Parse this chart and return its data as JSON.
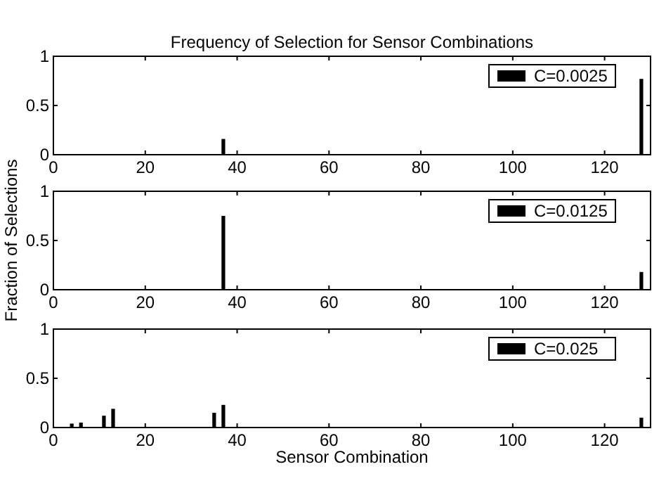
{
  "chart_data": [
    {
      "type": "bar",
      "title": "Frequency of Selection for Sensor Combinations",
      "x": [
        37,
        128
      ],
      "series": [
        {
          "name": "C=0.0025",
          "color": "#000000",
          "values": [
            0.16,
            0.77
          ]
        }
      ],
      "xlim": [
        0,
        130
      ],
      "xticks": [
        0,
        20,
        40,
        60,
        80,
        100,
        120
      ],
      "ylim": [
        0,
        1
      ],
      "yticks": [
        0,
        0.5,
        1
      ],
      "legend": "top right",
      "grid": false
    },
    {
      "type": "bar",
      "ylabel": "Fraction of Selections",
      "x": [
        37,
        128
      ],
      "series": [
        {
          "name": "C=0.0125",
          "color": "#000000",
          "values": [
            0.75,
            0.18
          ]
        }
      ],
      "xlim": [
        0,
        130
      ],
      "xticks": [
        0,
        20,
        40,
        60,
        80,
        100,
        120
      ],
      "ylim": [
        0,
        1
      ],
      "yticks": [
        0,
        0.5,
        1
      ],
      "legend": "top right",
      "grid": false
    },
    {
      "type": "bar",
      "xlabel": "Sensor Combination",
      "x": [
        4,
        6,
        11,
        13,
        35,
        37,
        128
      ],
      "series": [
        {
          "name": "C=0.025",
          "color": "#000000",
          "values": [
            0.04,
            0.05,
            0.12,
            0.19,
            0.15,
            0.23,
            0.1
          ]
        }
      ],
      "xlim": [
        0,
        130
      ],
      "xticks": [
        0,
        20,
        40,
        60,
        80,
        100,
        120
      ],
      "ylim": [
        0,
        1
      ],
      "yticks": [
        0,
        0.5,
        1
      ],
      "legend": "top right",
      "grid": false
    }
  ]
}
